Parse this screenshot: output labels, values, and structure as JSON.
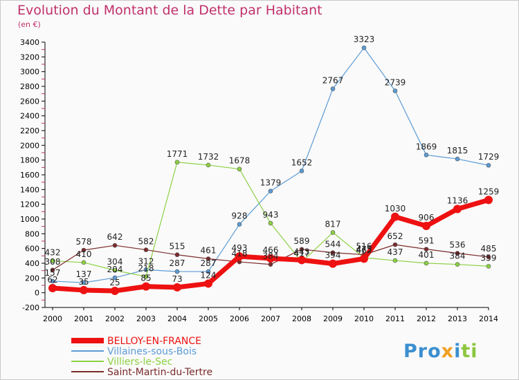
{
  "title": "Evolution du Montant de la Dette par Habitant",
  "unit_label": "(en €)",
  "logo_text": "Proxiti",
  "chart_data": {
    "type": "line",
    "title": "Evolution du Montant de la Dette par Habitant",
    "ylabel": "(en €)",
    "x": [
      2000,
      2001,
      2002,
      2003,
      2004,
      2005,
      2006,
      2007,
      2008,
      2009,
      2010,
      2011,
      2012,
      2013,
      2014
    ],
    "ylim": [
      -200,
      3400
    ],
    "yticks": [
      -200,
      0,
      200,
      400,
      600,
      800,
      1000,
      1200,
      1400,
      1600,
      1800,
      2000,
      2200,
      2400,
      2600,
      2800,
      3000,
      3200,
      3400
    ],
    "grid": false,
    "legend": "bottom-left",
    "series": [
      {
        "name": "Villaines-sous-Bois",
        "color": "#5b9bd5",
        "width": 1.2,
        "values": [
          157,
          137,
          204,
          312,
          287,
          287,
          928,
          1379,
          1652,
          2767,
          3323,
          2739,
          1869,
          1815,
          1729
        ]
      },
      {
        "name": "Villiers-le-Sec",
        "color": "#8cd142",
        "width": 1.2,
        "values": [
          432,
          410,
          304,
          218,
          1771,
          1732,
          1678,
          943,
          417,
          817,
          475,
          437,
          401,
          384,
          359
        ]
      },
      {
        "name": "Saint-Martin-du-Tertre",
        "color": "#7b2a2a",
        "width": 1.2,
        "values": [
          308,
          578,
          642,
          582,
          515,
          461,
          418,
          384,
          589,
          544,
          516,
          652,
          591,
          536,
          485
        ]
      },
      {
        "name": "BELLOY-EN-FRANCE",
        "color": "#ee1111",
        "width": 7,
        "values": [
          62,
          35,
          25,
          85,
          73,
          124,
          493,
          466,
          443,
          394,
          462,
          1030,
          906,
          1136,
          1259
        ]
      }
    ]
  }
}
